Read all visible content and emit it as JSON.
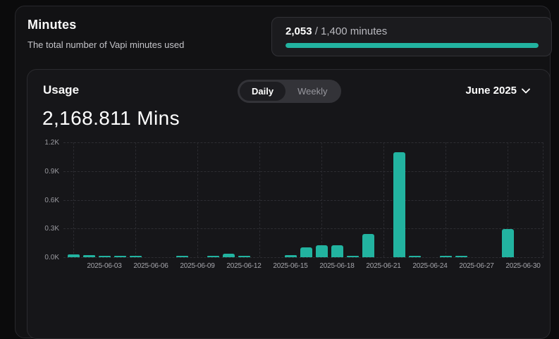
{
  "minutes_section": {
    "title": "Minutes",
    "subtitle": "The total number of Vapi minutes used",
    "progress": {
      "used": "2,053",
      "rest": " / 1,400 minutes",
      "percent": 100,
      "bar_color": "#22b3a0"
    }
  },
  "usage_card": {
    "title": "Usage",
    "toggle": {
      "options": [
        "Daily",
        "Weekly"
      ],
      "selected": "Daily"
    },
    "period_selector": {
      "label": "June 2025",
      "chevron_icon": "chevron-down"
    },
    "total": "2,168.811 Mins"
  },
  "chart_data": {
    "type": "bar",
    "x": [
      "2025-06-01",
      "2025-06-02",
      "2025-06-03",
      "2025-06-04",
      "2025-06-05",
      "2025-06-06",
      "2025-06-07",
      "2025-06-08",
      "2025-06-09",
      "2025-06-10",
      "2025-06-11",
      "2025-06-12",
      "2025-06-13",
      "2025-06-14",
      "2025-06-15",
      "2025-06-16",
      "2025-06-17",
      "2025-06-18",
      "2025-06-19",
      "2025-06-20",
      "2025-06-21",
      "2025-06-22",
      "2025-06-23",
      "2025-06-24",
      "2025-06-25",
      "2025-06-26",
      "2025-06-27",
      "2025-06-28",
      "2025-06-29",
      "2025-06-30"
    ],
    "values": [
      28,
      20,
      15,
      8,
      10,
      0,
      0,
      9,
      0,
      13,
      38,
      8,
      0,
      0,
      22,
      105,
      128,
      128,
      5,
      245,
      0,
      1100,
      9,
      0,
      6,
      9,
      0,
      0,
      295,
      0
    ],
    "ylim": [
      0,
      1200
    ],
    "y_ticks": [
      {
        "value": 0,
        "label": "0.0K"
      },
      {
        "value": 300,
        "label": "0.3K"
      },
      {
        "value": 600,
        "label": "0.6K"
      },
      {
        "value": 900,
        "label": "0.9K"
      },
      {
        "value": 1200,
        "label": "1.2K"
      }
    ],
    "x_tick_labels": [
      "2025-06-03",
      "2025-06-06",
      "2025-06-09",
      "2025-06-12",
      "2025-06-15",
      "2025-06-18",
      "2025-06-21",
      "2025-06-24",
      "2025-06-27",
      "2025-06-30"
    ],
    "grid": "dashed",
    "legend": "none",
    "bar_color": "#22b3a0",
    "xlabel": "",
    "ylabel": ""
  }
}
